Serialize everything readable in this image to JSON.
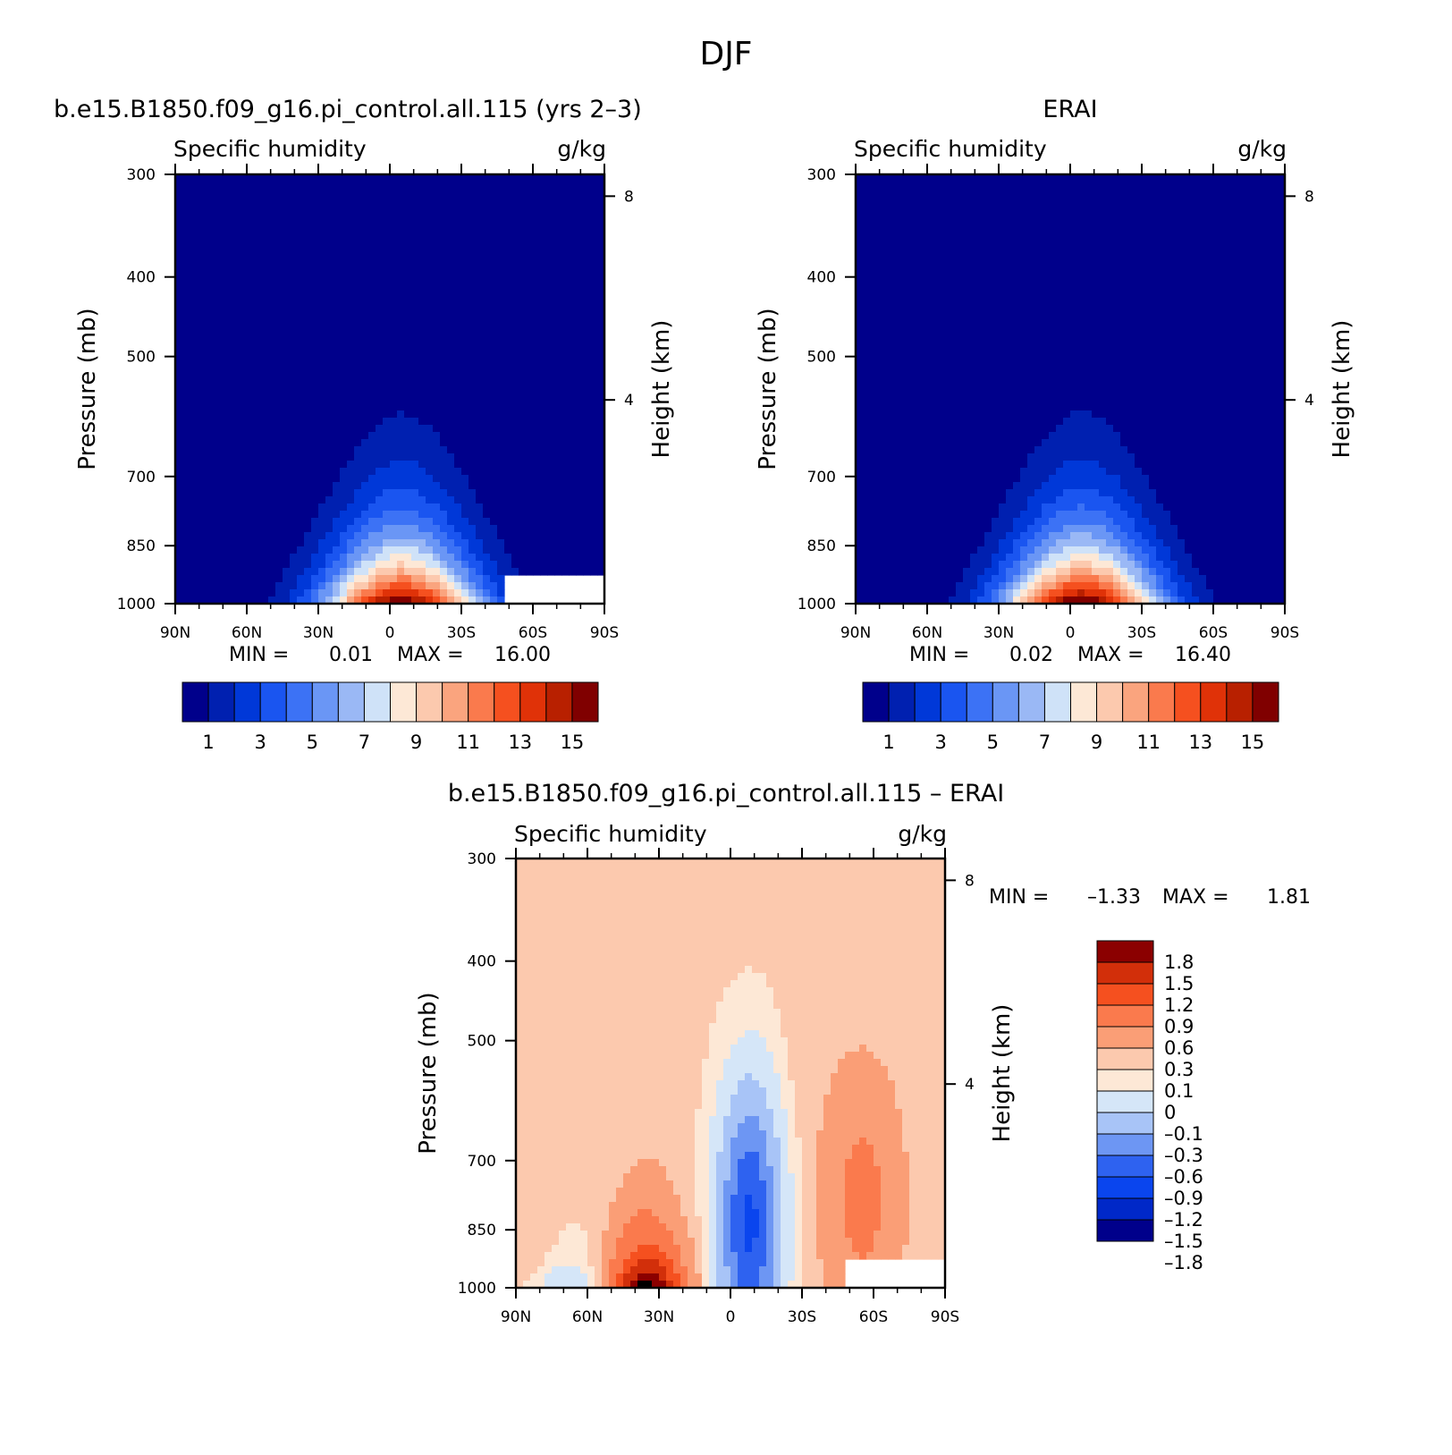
{
  "figure": {
    "title": "DJF"
  },
  "colors": {
    "main_scale": [
      "#00008b",
      "#0020b0",
      "#0038d8",
      "#1a55f0",
      "#3c72f5",
      "#6a96f5",
      "#9ab8f5",
      "#cfe2f8",
      "#fde8d6",
      "#fcc9ae",
      "#faa47e",
      "#fa7a4d",
      "#f5501f",
      "#e03208",
      "#b82000",
      "#800000"
    ],
    "diff_scale": [
      "#00008b",
      "#0028c8",
      "#0a45ee",
      "#2e62f0",
      "#6d96f3",
      "#a8c4f7",
      "#d5e6f8",
      "#fde8d6",
      "#fcc9ae",
      "#fa9e76",
      "#fa7a4d",
      "#f5501f",
      "#d22f0a",
      "#8b0000"
    ]
  },
  "chart_data": [
    {
      "type": "contour",
      "panel_title": "b.e15.B1850.f09_g16.pi_control.all.115 (yrs 2–3)",
      "left_label": "Specific humidity",
      "right_label": "g/kg",
      "ylabel": "Pressure (mb)",
      "ylabel_right": "Height (km)",
      "x_ticks": [
        "90N",
        "60N",
        "30N",
        "0",
        "30S",
        "60S",
        "90S"
      ],
      "y_ticks": [
        "300",
        "400",
        "500",
        "700",
        "850",
        "1000"
      ],
      "y_ticks_right": [
        "8",
        "4"
      ],
      "ylim": [
        1000,
        300
      ],
      "min_label": "MIN =",
      "min_value": "0.01",
      "max_label": "MAX =",
      "max_value": "16.00",
      "colorbar_labels": [
        "1",
        "3",
        "5",
        "7",
        "9",
        "11",
        "13",
        "15"
      ],
      "levels": [
        1,
        2,
        3,
        4,
        5,
        6,
        7,
        8,
        9,
        10,
        11,
        12,
        13,
        14,
        15
      ]
    },
    {
      "type": "contour",
      "panel_title": "ERAI",
      "left_label": "Specific humidity",
      "right_label": "g/kg",
      "ylabel": "Pressure (mb)",
      "ylabel_right": "Height (km)",
      "x_ticks": [
        "90N",
        "60N",
        "30N",
        "0",
        "30S",
        "60S",
        "90S"
      ],
      "y_ticks": [
        "300",
        "400",
        "500",
        "700",
        "850",
        "1000"
      ],
      "y_ticks_right": [
        "8",
        "4"
      ],
      "ylim": [
        1000,
        300
      ],
      "min_label": "MIN =",
      "min_value": "0.02",
      "max_label": "MAX =",
      "max_value": "16.40",
      "colorbar_labels": [
        "1",
        "3",
        "5",
        "7",
        "9",
        "11",
        "13",
        "15"
      ],
      "levels": [
        1,
        2,
        3,
        4,
        5,
        6,
        7,
        8,
        9,
        10,
        11,
        12,
        13,
        14,
        15
      ]
    },
    {
      "type": "contour",
      "panel_title": "b.e15.B1850.f09_g16.pi_control.all.115 – ERAI",
      "left_label": "Specific humidity",
      "right_label": "g/kg",
      "ylabel": "Pressure (mb)",
      "ylabel_right": "Height (km)",
      "x_ticks": [
        "90N",
        "60N",
        "30N",
        "0",
        "30S",
        "60S",
        "90S"
      ],
      "y_ticks": [
        "300",
        "400",
        "500",
        "700",
        "850",
        "1000"
      ],
      "y_ticks_right": [
        "8",
        "4"
      ],
      "ylim": [
        1000,
        300
      ],
      "min_label": "MIN =",
      "min_value": "–1.33",
      "max_label": "MAX =",
      "max_value": "1.81",
      "colorbar_labels": [
        "1.8",
        "1.5",
        "1.2",
        "0.9",
        "0.6",
        "0.3",
        "0.1",
        "0",
        "–0.1",
        "–0.3",
        "–0.6",
        "–0.9",
        "–1.2",
        "–1.5",
        "–1.8"
      ],
      "levels": [
        1.8,
        1.5,
        1.2,
        0.9,
        0.6,
        0.3,
        0.1,
        0,
        -0.1,
        -0.3,
        -0.6,
        -0.9,
        -1.2,
        -1.5,
        -1.8
      ]
    }
  ]
}
